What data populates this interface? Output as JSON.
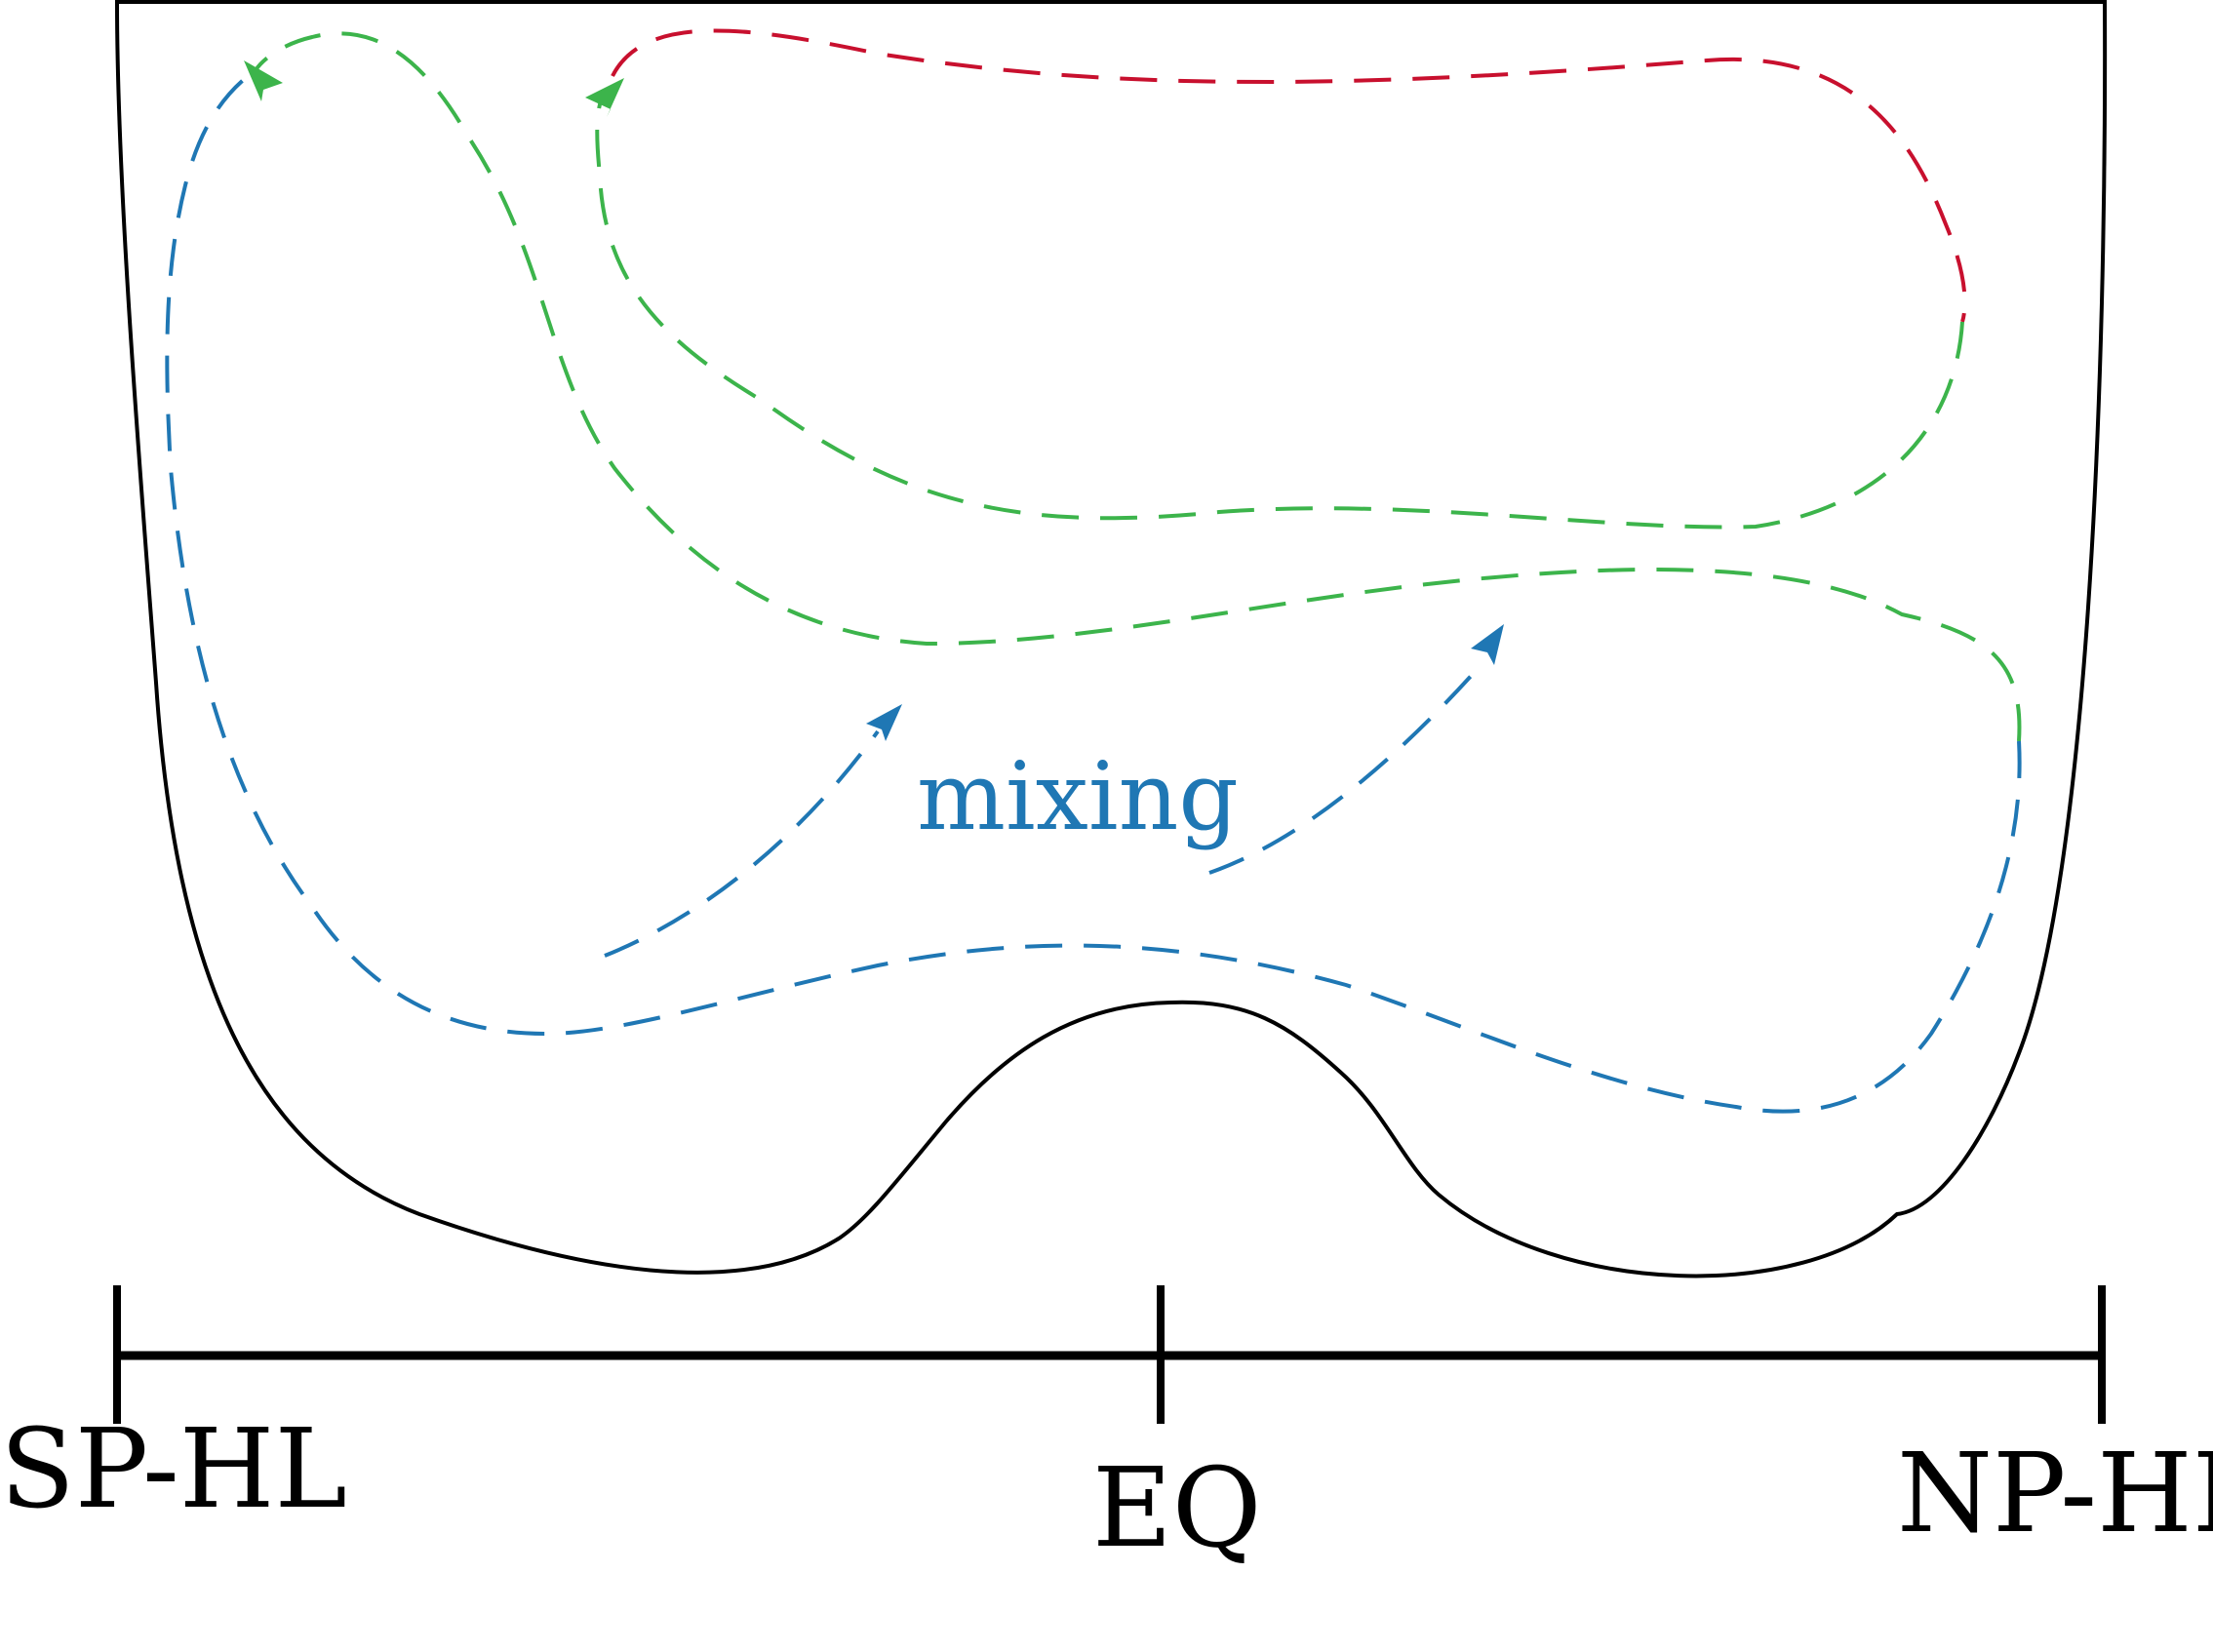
{
  "colors": {
    "outline": "#000000",
    "blue": "#1f77b4",
    "green": "#3cb44b",
    "red": "#c8102e"
  },
  "labels": {
    "mixing": "mixing",
    "sp_hl": "SP-HL",
    "eq": "EQ",
    "np_hl": "NP-HL"
  }
}
